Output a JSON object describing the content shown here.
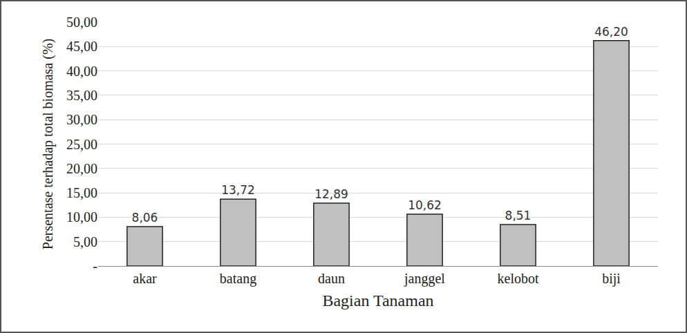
{
  "chart_data": {
    "type": "bar",
    "x_label": "Bagian Tanaman",
    "y_label": "Persentase terhadap total biomasa (%)",
    "categories": [
      "akar",
      "batang",
      "daun",
      "janggel",
      "kelobot",
      "biji"
    ],
    "values": [
      8.06,
      13.72,
      12.89,
      10.62,
      8.51,
      46.2
    ],
    "value_labels": [
      "8,06",
      "13,72",
      "12,89",
      "10,62",
      "8,51",
      "46,20"
    ],
    "data_labels": true,
    "color": "#c0c0c0",
    "ylim": [
      0,
      50
    ],
    "yticks": [
      {
        "value": 0,
        "label": "-"
      },
      {
        "value": 5,
        "label": "5,00"
      },
      {
        "value": 10,
        "label": "10,00"
      },
      {
        "value": 15,
        "label": "15,00"
      },
      {
        "value": 20,
        "label": "20,00"
      },
      {
        "value": 25,
        "label": "25,00"
      },
      {
        "value": 30,
        "label": "30,00"
      },
      {
        "value": 35,
        "label": "35,00"
      },
      {
        "value": 40,
        "label": "40,00"
      },
      {
        "value": 45,
        "label": "45,00"
      },
      {
        "value": 50,
        "label": "50,00"
      }
    ],
    "grid": true
  }
}
